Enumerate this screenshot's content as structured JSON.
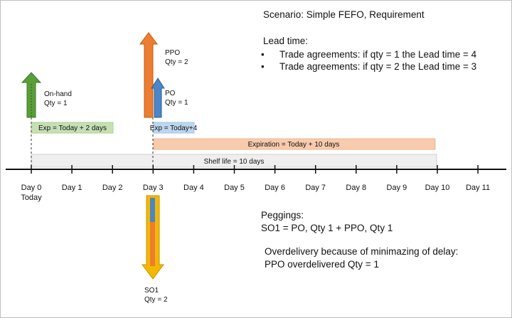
{
  "scenario": {
    "title": "Scenario: Simple FEFO, Requirement"
  },
  "lead_time": {
    "heading": "Lead time:",
    "bullets": [
      "Trade agreements: if qty = 1 the Lead time = 4",
      "Trade agreements: if qty = 2 the Lead time = 3"
    ]
  },
  "timeline": {
    "ticks": [
      "Day 0",
      "Day 1",
      "Day 2",
      "Day 3",
      "Day 4",
      "Day 5",
      "Day 6",
      "Day 7",
      "Day 8",
      "Day 9",
      "Day 10",
      "Day 11"
    ],
    "today_label": "Today"
  },
  "supplies": {
    "on_hand": {
      "name": "On-hand",
      "qty": "Qty = 1",
      "color": "#5a9e3a"
    },
    "ppo": {
      "name": "PPO",
      "qty": "Qty = 2",
      "color": "#ed7d31"
    },
    "po": {
      "name": "PO",
      "qty": "Qty = 1",
      "color": "#4a86c8"
    }
  },
  "bars": {
    "exp_on_hand": "Exp = Today + 2 days",
    "exp_po": "Exp = Today+4",
    "expiration_ppo": "Expiration = Today + 10 days",
    "shelf_life": "Shelf life = 10 days"
  },
  "demand": {
    "name": "SO1",
    "qty": "Qty = 2",
    "color": "#f5b800"
  },
  "peggings": {
    "heading": "Peggings:",
    "line": "SO1 = PO, Qty 1 + PPO, Qty 1"
  },
  "overdelivery": {
    "heading": "Overdelivery because of minimazing of delay:",
    "line": "PPO overdelivered Qty = 1"
  }
}
